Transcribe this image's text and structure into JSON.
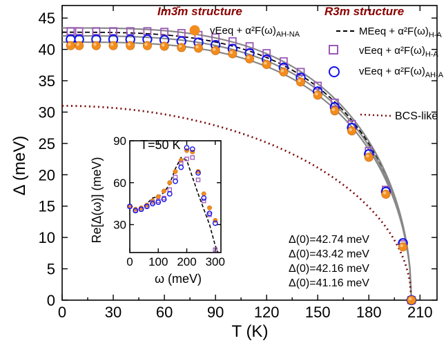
{
  "colors": {
    "orange": "#f28c1e",
    "purple": "#9b59b6",
    "blue": "#1010ee",
    "gray": "#888888",
    "darkred": "#7a0c0c",
    "header": "#8b0000"
  },
  "chart_data": [
    {
      "type": "scatter",
      "xlabel": "T (K)",
      "ylabel": "Δ (meV)",
      "xlim": [
        0,
        220
      ],
      "ylim": [
        0,
        47
      ],
      "xticks": [
        "0",
        "30",
        "60",
        "90",
        "120",
        "150",
        "180",
        "210"
      ],
      "yticks": [
        "0",
        "5",
        "10",
        "15",
        "20",
        "25",
        "30",
        "35",
        "40",
        "45"
      ],
      "headers": {
        "left": "Im3̄m structure",
        "right": "R3m structure"
      },
      "legend": {
        "orange": "vEeq + α²F(ω)",
        "orange_sub": "AH-NA",
        "dashed": "MEeq + α²F(ω)",
        "dashed_sub": "H-A",
        "purple": "vEeq + α²F(ω)",
        "purple_sub": "H-A",
        "blue": "vEeq + α²F(ω)",
        "blue_sub": "AH-A"
      },
      "bcs_label": "BCS-like",
      "gap_annotations": [
        "Δ(0)=42.74 meV",
        "Δ(0)=43.42 meV",
        "Δ(0)=42.16 meV",
        "Δ(0)=41.16 meV"
      ],
      "series": [
        {
          "key": "orange",
          "marker": "filled-circle",
          "Tc": 205,
          "gap0": 41.16,
          "x": [
            5,
            10,
            20,
            30,
            40,
            50,
            60,
            70,
            80,
            90,
            100,
            110,
            120,
            130,
            140,
            150,
            160,
            170,
            180,
            190,
            200,
            205
          ],
          "y": [
            40.6,
            40.6,
            40.6,
            40.6,
            40.6,
            40.6,
            40.5,
            40.3,
            40.2,
            39.8,
            39.3,
            38.5,
            37.6,
            36.4,
            34.8,
            32.7,
            30.2,
            27.0,
            22.8,
            16.9,
            8.5,
            0.0
          ]
        },
        {
          "key": "purple",
          "marker": "open-square",
          "Tc": 205,
          "gap0": 43.42,
          "x": [
            5,
            10,
            20,
            30,
            40,
            50,
            60,
            70,
            80,
            90,
            100,
            110,
            120,
            130,
            140,
            150,
            160,
            170,
            180,
            190,
            200,
            205
          ],
          "y": [
            42.9,
            42.9,
            42.9,
            42.9,
            42.9,
            42.9,
            42.8,
            42.6,
            42.3,
            41.9,
            41.3,
            40.5,
            39.4,
            38.1,
            36.4,
            34.2,
            31.5,
            28.1,
            23.8,
            17.6,
            8.9,
            0.0
          ]
        },
        {
          "key": "blue",
          "marker": "open-circle",
          "Tc": 205,
          "gap0": 42.16,
          "x": [
            5,
            10,
            20,
            30,
            40,
            50,
            60,
            70,
            80,
            90,
            100,
            110,
            120,
            130,
            140,
            150,
            160,
            170,
            180,
            190,
            200,
            205
          ],
          "y": [
            41.6,
            41.6,
            41.6,
            41.6,
            41.6,
            41.6,
            41.5,
            41.3,
            41.1,
            40.7,
            40.1,
            39.4,
            38.4,
            37.1,
            35.5,
            33.3,
            30.8,
            27.5,
            23.3,
            17.3,
            9.1,
            0.0
          ]
        }
      ],
      "curves": [
        {
          "key": "dashed",
          "Tc": 205,
          "gap0": 42.74,
          "style": "dashed"
        },
        {
          "key": "gray",
          "Tc": 205,
          "gap0": 41.16,
          "style": "solid"
        },
        {
          "key": "gray",
          "Tc": 205,
          "gap0": 42.16,
          "style": "solid"
        },
        {
          "key": "gray",
          "Tc": 205,
          "gap0": 43.42,
          "style": "solid"
        },
        {
          "key": "darkred",
          "Tc": 205,
          "gap0": 31.0,
          "style": "dotted",
          "bcs": true
        }
      ]
    },
    {
      "type": "scatter",
      "title": "T=50 K",
      "xlabel": "ω (meV)",
      "ylabel": "Re[Δ(ω)] (meV)",
      "xlim": [
        0,
        320
      ],
      "ylim": [
        10,
        90
      ],
      "xticks": [
        "0",
        "100",
        "200",
        "300"
      ],
      "yticks": [
        "30",
        "60",
        "90"
      ],
      "series": [
        {
          "key": "orange",
          "marker": "filled-circle",
          "x": [
            0,
            20,
            40,
            60,
            80,
            100,
            120,
            140,
            160,
            180,
            200,
            220,
            240,
            260,
            280,
            300
          ],
          "y": [
            43,
            41,
            42,
            44,
            47,
            50,
            54,
            60,
            68,
            76,
            83,
            82,
            68,
            52,
            42,
            33
          ]
        },
        {
          "key": "purple",
          "marker": "open-square",
          "x": [
            0,
            20,
            40,
            60,
            80,
            100,
            120,
            140,
            160,
            180,
            200,
            220,
            240,
            260,
            280,
            300
          ],
          "y": [
            43,
            40,
            41,
            43,
            46,
            47,
            49,
            55,
            64,
            74,
            77,
            78,
            62,
            47,
            37,
            12
          ]
        },
        {
          "key": "blue",
          "marker": "open-circle",
          "x": [
            0,
            20,
            40,
            60,
            80,
            100,
            120,
            140,
            160,
            180,
            200,
            220,
            240,
            260,
            280,
            300
          ],
          "y": [
            43,
            40,
            41,
            43,
            45,
            46,
            48,
            52,
            61,
            71,
            85,
            84,
            67,
            49,
            38,
            31
          ]
        },
        {
          "key": "dashed",
          "style": "dashed",
          "x": [
            0,
            20,
            40,
            60,
            80,
            100,
            120,
            140,
            160,
            180,
            200,
            220,
            240,
            260,
            280,
            300,
            310
          ],
          "y": [
            44,
            41,
            42,
            45,
            49,
            50,
            53,
            59,
            70,
            78,
            76,
            64,
            52,
            41,
            30,
            15,
            10
          ]
        }
      ]
    }
  ]
}
